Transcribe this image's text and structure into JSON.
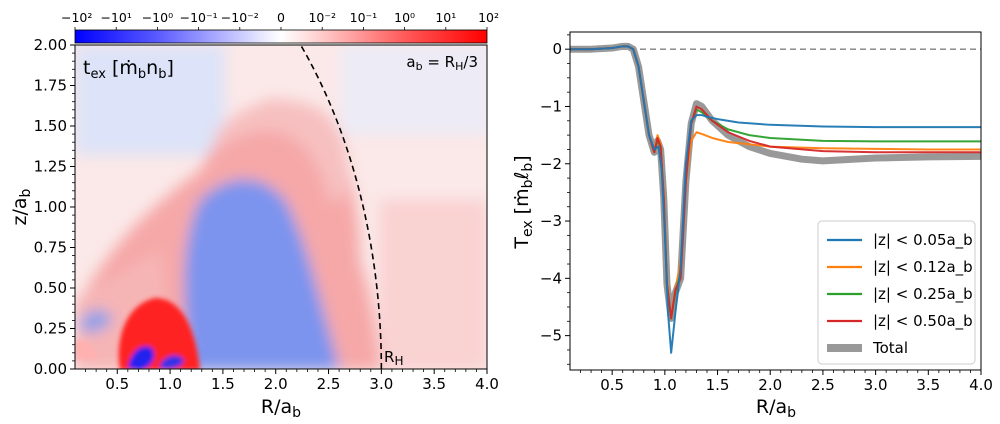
{
  "chart_data": [
    {
      "type": "heatmap",
      "panel_label": "t_ex [ṁ_b n_b]",
      "annotation_top_right": "a_b = R_H/3",
      "annotation_rh": "R_H",
      "xlabel": "R/a_b",
      "ylabel": "z/a_b",
      "xlim": [
        0.1,
        4.0
      ],
      "ylim": [
        0.0,
        2.0
      ],
      "xticks": [
        "0.5",
        "1.0",
        "1.5",
        "2.0",
        "2.5",
        "3.0",
        "3.5",
        "4.0"
      ],
      "xtick_values": [
        0.5,
        1.0,
        1.5,
        2.0,
        2.5,
        3.0,
        3.5,
        4.0
      ],
      "yticks": [
        "0.00",
        "0.25",
        "0.50",
        "0.75",
        "1.00",
        "1.25",
        "1.50",
        "1.75",
        "2.00"
      ],
      "ytick_values": [
        0.0,
        0.25,
        0.5,
        0.75,
        1.0,
        1.25,
        1.5,
        1.75,
        2.0
      ],
      "hill_radius_curve": {
        "center_r": 0.0,
        "radius": 3.0,
        "style": "dashed",
        "color": "#000000"
      },
      "colormap": "bwr",
      "colorbar": {
        "scale": "symlog",
        "labels": [
          "−10²",
          "−10¹",
          "−10⁰",
          "−10⁻¹",
          "−10⁻²",
          "0",
          "10⁻²",
          "10⁻¹",
          "10⁰",
          "10¹",
          "10²"
        ],
        "min_color": "#0000ff",
        "mid_color": "#ffffff",
        "max_color": "#ff0000"
      },
      "colors": {
        "negative_region": "#6f8bf0",
        "positive_region": "#f9a3a3",
        "strong_positive": "#ff1a1a",
        "strong_negative": "#1a1aff"
      }
    },
    {
      "type": "line",
      "xlabel": "R/a_b",
      "ylabel": "T_ex [ṁ_b ℓ_b]",
      "xlim": [
        0.1,
        4.0
      ],
      "ylim": [
        -5.6,
        0.3
      ],
      "xticks": [
        "0.5",
        "1.0",
        "1.5",
        "2.0",
        "2.5",
        "3.0",
        "3.5",
        "4.0"
      ],
      "xtick_values": [
        0.5,
        1.0,
        1.5,
        2.0,
        2.5,
        3.0,
        3.5,
        4.0
      ],
      "yticks": [
        "0",
        "−1",
        "−2",
        "−3",
        "−4",
        "−5"
      ],
      "ytick_values": [
        0,
        -1,
        -2,
        -3,
        -4,
        -5
      ],
      "zero_line": {
        "y": 0,
        "style": "dashed",
        "color": "#808080"
      },
      "legend_position": "lower-right",
      "series": [
        {
          "name": "|z| < 0.05a_b",
          "color": "#1f77b4",
          "width": 2,
          "x": [
            0.1,
            0.3,
            0.5,
            0.6,
            0.65,
            0.7,
            0.75,
            0.8,
            0.85,
            0.9,
            0.94,
            0.97,
            1.0,
            1.03,
            1.06,
            1.1,
            1.15,
            1.2,
            1.25,
            1.3,
            1.35,
            1.4,
            1.5,
            1.7,
            2.0,
            2.5,
            3.0,
            3.5,
            4.0
          ],
          "y": [
            0.0,
            0.0,
            0.02,
            0.05,
            0.05,
            0.0,
            -0.3,
            -0.9,
            -1.5,
            -1.75,
            -1.7,
            -2.1,
            -3.2,
            -4.6,
            -5.3,
            -4.6,
            -3.8,
            -2.0,
            -1.25,
            -1.15,
            -1.15,
            -1.18,
            -1.22,
            -1.28,
            -1.32,
            -1.35,
            -1.36,
            -1.36,
            -1.36
          ]
        },
        {
          "name": "|z| < 0.12a_b",
          "color": "#ff7f0e",
          "width": 2,
          "x": [
            0.1,
            0.3,
            0.5,
            0.6,
            0.65,
            0.7,
            0.75,
            0.8,
            0.85,
            0.9,
            0.93,
            0.96,
            0.99,
            1.02,
            1.06,
            1.1,
            1.15,
            1.2,
            1.25,
            1.3,
            1.35,
            1.45,
            1.6,
            1.8,
            2.0,
            2.5,
            3.0,
            3.5,
            4.0
          ],
          "y": [
            0.0,
            0.0,
            0.02,
            0.05,
            0.05,
            0.0,
            -0.3,
            -0.9,
            -1.5,
            -1.8,
            -1.5,
            -1.65,
            -2.5,
            -4.0,
            -4.7,
            -4.2,
            -3.7,
            -2.3,
            -1.6,
            -1.45,
            -1.48,
            -1.55,
            -1.62,
            -1.66,
            -1.7,
            -1.73,
            -1.74,
            -1.75,
            -1.75
          ]
        },
        {
          "name": "|z| < 0.25a_b",
          "color": "#2ca02c",
          "width": 2,
          "x": [
            0.1,
            0.3,
            0.5,
            0.6,
            0.65,
            0.7,
            0.75,
            0.8,
            0.85,
            0.9,
            0.93,
            0.96,
            0.99,
            1.02,
            1.06,
            1.1,
            1.15,
            1.2,
            1.25,
            1.3,
            1.35,
            1.45,
            1.6,
            1.8,
            2.0,
            2.5,
            3.0,
            3.5,
            4.0
          ],
          "y": [
            0.0,
            0.0,
            0.02,
            0.05,
            0.05,
            0.0,
            -0.3,
            -0.9,
            -1.5,
            -1.8,
            -1.6,
            -1.7,
            -2.6,
            -4.1,
            -4.7,
            -4.25,
            -3.9,
            -2.2,
            -1.3,
            -1.05,
            -1.1,
            -1.25,
            -1.4,
            -1.5,
            -1.55,
            -1.6,
            -1.61,
            -1.61,
            -1.61
          ]
        },
        {
          "name": "|z| < 0.50a_b",
          "color": "#d62728",
          "width": 2,
          "x": [
            0.1,
            0.3,
            0.5,
            0.6,
            0.65,
            0.7,
            0.75,
            0.8,
            0.85,
            0.9,
            0.93,
            0.96,
            0.99,
            1.02,
            1.06,
            1.1,
            1.15,
            1.2,
            1.25,
            1.3,
            1.35,
            1.45,
            1.6,
            1.8,
            2.0,
            2.5,
            3.0,
            3.5,
            4.0
          ],
          "y": [
            0.0,
            0.0,
            0.02,
            0.05,
            0.05,
            0.0,
            -0.3,
            -0.9,
            -1.5,
            -1.8,
            -1.55,
            -1.7,
            -2.6,
            -4.1,
            -4.7,
            -4.2,
            -4.0,
            -2.3,
            -1.3,
            -1.0,
            -1.05,
            -1.25,
            -1.45,
            -1.6,
            -1.7,
            -1.78,
            -1.8,
            -1.8,
            -1.8
          ]
        },
        {
          "name": "Total",
          "color": "#999999",
          "width": 7,
          "x": [
            0.1,
            0.3,
            0.5,
            0.6,
            0.65,
            0.7,
            0.75,
            0.8,
            0.85,
            0.9,
            0.93,
            0.96,
            0.99,
            1.02,
            1.06,
            1.1,
            1.15,
            1.2,
            1.25,
            1.3,
            1.35,
            1.45,
            1.6,
            1.8,
            2.0,
            2.3,
            2.5,
            3.0,
            3.5,
            4.0
          ],
          "y": [
            0.0,
            0.0,
            0.02,
            0.05,
            0.05,
            0.0,
            -0.3,
            -0.9,
            -1.5,
            -1.8,
            -1.6,
            -1.75,
            -2.6,
            -4.1,
            -4.7,
            -4.25,
            -4.0,
            -2.3,
            -1.3,
            -0.95,
            -1.0,
            -1.25,
            -1.5,
            -1.7,
            -1.82,
            -1.92,
            -1.95,
            -1.9,
            -1.88,
            -1.87
          ]
        }
      ]
    }
  ]
}
